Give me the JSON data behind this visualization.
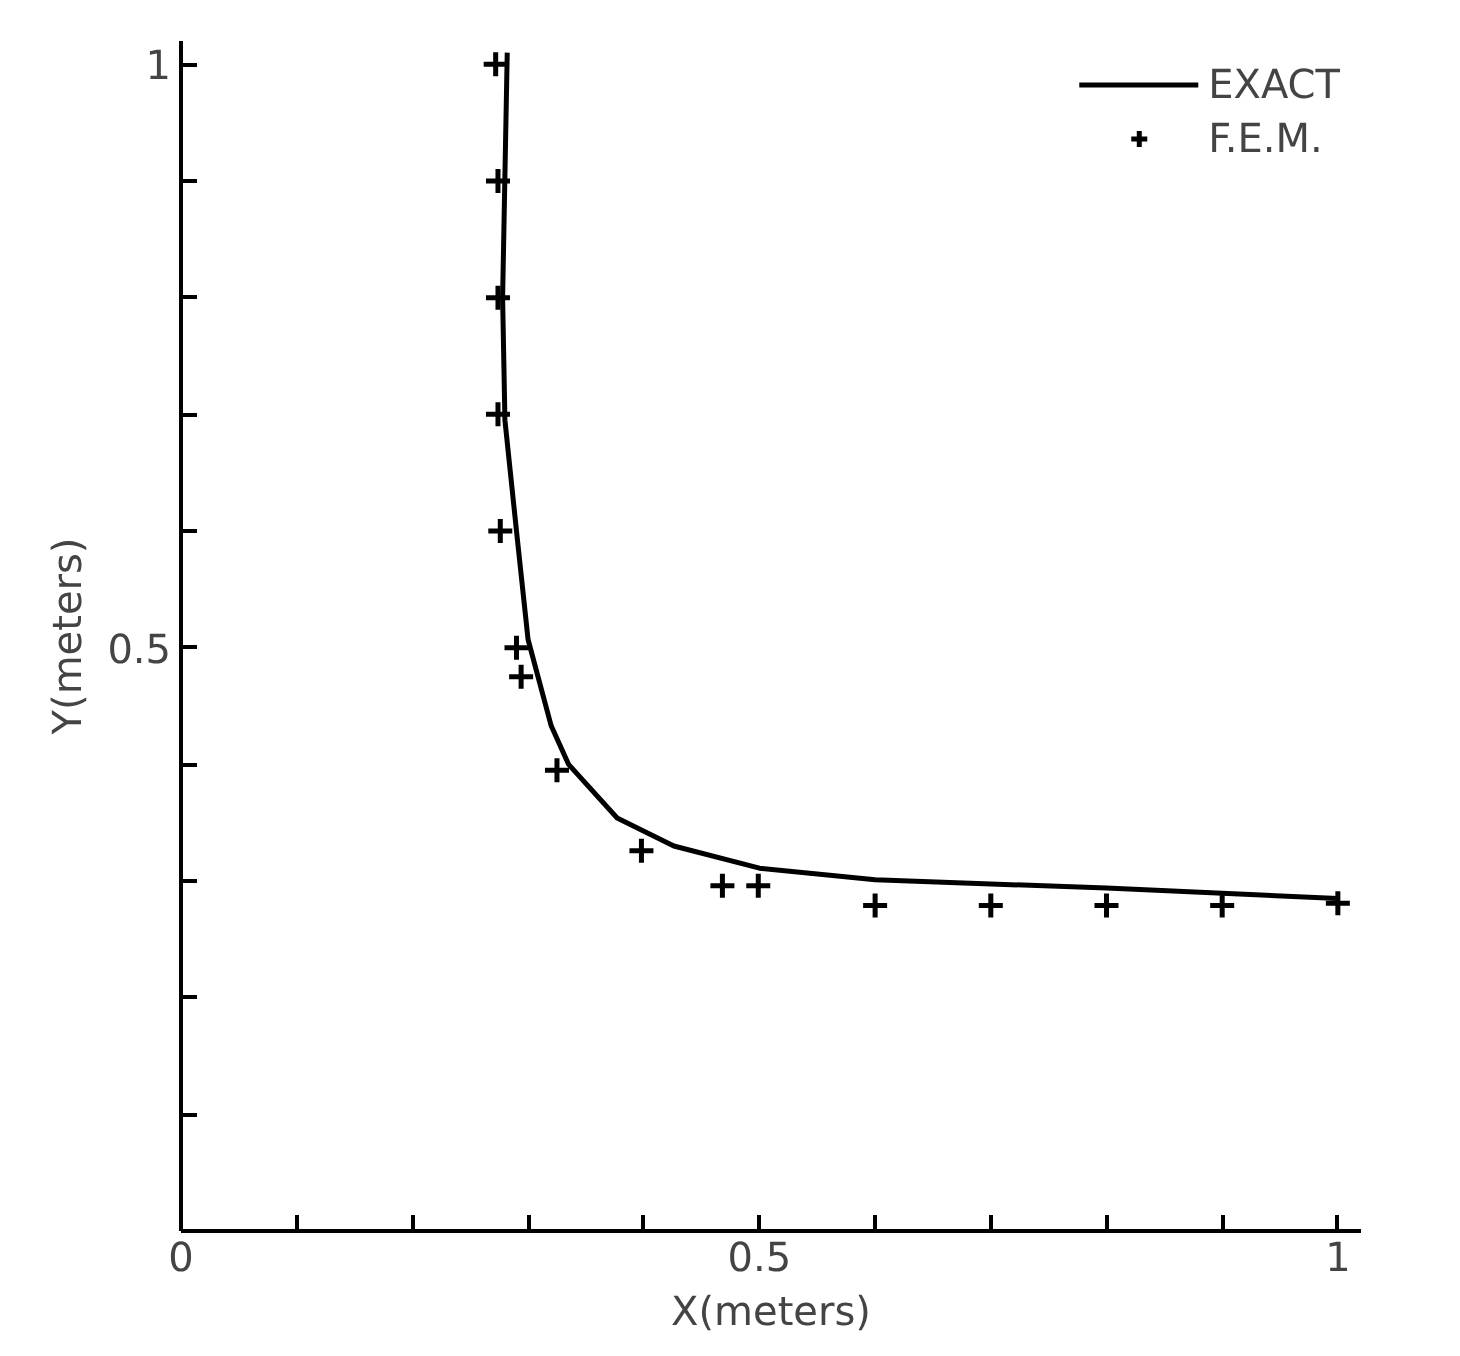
{
  "chart_data": {
    "type": "line",
    "xlabel": "X(meters)",
    "ylabel": "Y(meters)",
    "xlim": [
      0,
      1.02
    ],
    "ylim": [
      0,
      1.02
    ],
    "xticks": [
      {
        "value": 0,
        "label": "0"
      },
      {
        "value": 0.1,
        "label": null
      },
      {
        "value": 0.2,
        "label": null
      },
      {
        "value": 0.3,
        "label": null
      },
      {
        "value": 0.4,
        "label": null
      },
      0.5,
      {
        "value": 0.6,
        "label": null
      },
      {
        "value": 0.7,
        "label": null
      },
      {
        "value": 0.8,
        "label": null
      },
      {
        "value": 0.9,
        "label": null
      },
      1
    ],
    "yticks": [
      {
        "value": 0,
        "label": null
      },
      {
        "value": 0.1,
        "label": null
      },
      {
        "value": 0.2,
        "label": null
      },
      {
        "value": 0.3,
        "label": null
      },
      {
        "value": 0.4,
        "label": null
      },
      0.5,
      {
        "value": 0.6,
        "label": null
      },
      {
        "value": 0.7,
        "label": null
      },
      {
        "value": 0.8,
        "label": null
      },
      {
        "value": 0.9,
        "label": null
      },
      1
    ],
    "grid": false,
    "legend": "top right",
    "series": [
      {
        "name": "EXACT",
        "color": "#000000",
        "line_style": "solid",
        "marker": "none",
        "x": [
          0.282,
          0.278,
          0.28,
          0.29,
          0.3,
          0.32,
          0.335,
          0.377,
          0.426,
          0.5,
          0.6,
          0.8,
          1.0
        ],
        "values": [
          1.01,
          0.8,
          0.695,
          0.6,
          0.507,
          0.433,
          0.4,
          0.354,
          0.33,
          0.311,
          0.301,
          0.294,
          0.285
        ]
      },
      {
        "name": "F.E.M.",
        "type": "scatter",
        "color": "#000000",
        "marker": "cross",
        "x": [
          0.272,
          0.274,
          0.274,
          0.274,
          0.276,
          0.29,
          0.294,
          0.325,
          0.398,
          0.468,
          0.499,
          0.6,
          0.7,
          0.8,
          0.9,
          1.0
        ],
        "values": [
          1.0,
          0.9,
          0.8,
          0.7,
          0.6,
          0.5,
          0.475,
          0.395,
          0.326,
          0.296,
          0.296,
          0.279,
          0.279,
          0.279,
          0.279,
          0.281
        ]
      }
    ]
  }
}
